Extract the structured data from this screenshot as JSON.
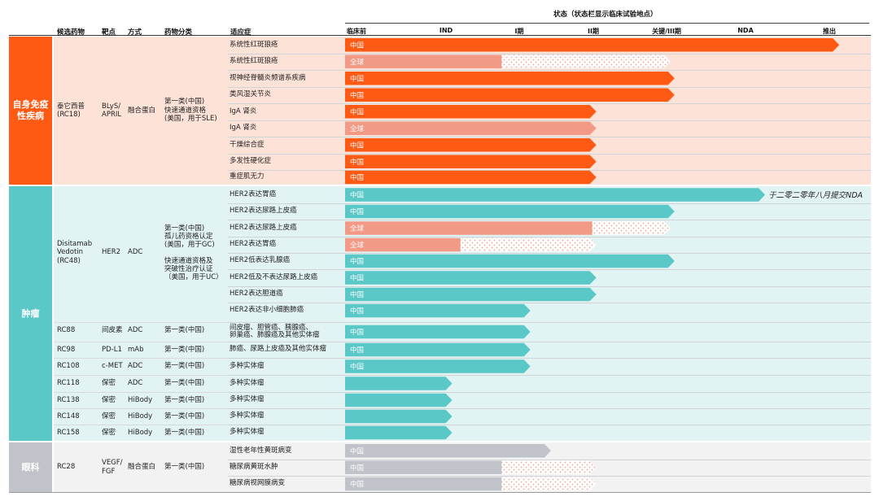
{
  "header": {
    "status_title": "状态（状态栏显示临床试验地点）",
    "col_candidate": "候选药物",
    "col_target": "靶点",
    "col_modality": "方式",
    "col_class": "药物分类",
    "col_indication": "适应症"
  },
  "colors": {
    "autoimmune_dark": "#ff5a14",
    "autoimmune_light": "#f29a86",
    "oncology_dark": "#5bc8c8",
    "oncology_light": "#f29a86",
    "ophthalmology_dark": "#c0c3c9",
    "text_on_bar": "#ffffff"
  },
  "categories": [
    {
      "name": "自身免疫\n性疾病",
      "key": "autoimmune"
    },
    {
      "name": "肿瘤",
      "key": "oncology"
    },
    {
      "name": "眼科",
      "key": "ophthalmology"
    }
  ],
  "drugs": [
    {
      "name": "泰它西普\n(RC18)",
      "target": "BLyS/\nAPRIL",
      "modality": "融合蛋白",
      "class": "第一类(中国)\n快速通道资格\n(美国，用于SLE)"
    },
    {
      "name": "Disitamab\nVedotin\n(RC48)",
      "target": "HER2",
      "modality": "ADC",
      "class": "第一类(中国)\n孤儿药资格认定\n(美国，用于GC)\n\n快速通道资格及\n突破性治疗认证\n（美国，用于UC）"
    },
    {
      "name": "RC88",
      "target": "间皮素",
      "modality": "ADC",
      "class": "第一类(中国)"
    },
    {
      "name": "RC98",
      "target": "PD-L1",
      "modality": "mAb",
      "class": "第一类(中国)"
    },
    {
      "name": "RC108",
      "target": "c-MET",
      "modality": "ADC",
      "class": "第一类(中国)"
    },
    {
      "name": "RC118",
      "target": "保密",
      "modality": "ADC",
      "class": "第一类(中国)"
    },
    {
      "name": "RC138",
      "target": "保密",
      "modality": "HiBody",
      "class": "第一类(中国)"
    },
    {
      "name": "RC148",
      "target": "保密",
      "modality": "HiBody",
      "class": "第一类(中国)"
    },
    {
      "name": "RC158",
      "target": "保密",
      "modality": "HiBody",
      "class": "第一类(中国)"
    },
    {
      "name": "RC28",
      "target": "VEGF/\nFGF",
      "modality": "融合蛋白",
      "class": "第一类(中国)"
    }
  ],
  "chart_data": {
    "type": "bar",
    "orientation": "horizontal",
    "title": "状态（状态栏显示临床试验地点）",
    "stages": [
      "临床前",
      "IND",
      "I期",
      "II期",
      "关键/III期",
      "NDA",
      "推出"
    ],
    "value_scale": "stage index: 0=临床前, 1=IND, 2=I期, 3=II期, 4=关键/III期, 5=NDA, 6=推出",
    "rows": [
      {
        "category": "autoimmune",
        "indication": "系统性红斑狼疮",
        "location": "中国",
        "value": 6.0
      },
      {
        "category": "autoimmune",
        "indication": "系统性红斑狼疮",
        "location": "全球",
        "value": 1.9,
        "planned_to": 3.95
      },
      {
        "category": "autoimmune",
        "indication": "视神经脊髓炎频谱系疾病",
        "location": "中国",
        "value": 4.0
      },
      {
        "category": "autoimmune",
        "indication": "类风湿关节炎",
        "location": "中国",
        "value": 4.0
      },
      {
        "category": "autoimmune",
        "indication": "IgA 肾炎",
        "location": "中国",
        "value": 3.05
      },
      {
        "category": "autoimmune",
        "indication": "IgA 肾炎",
        "location": "全球",
        "value": 3.05
      },
      {
        "category": "autoimmune",
        "indication": "干燥综合症",
        "location": "中国",
        "value": 3.05
      },
      {
        "category": "autoimmune",
        "indication": "多发性硬化症",
        "location": "中国",
        "value": 3.05
      },
      {
        "category": "autoimmune",
        "indication": "重症肌无力",
        "location": "中国",
        "value": 3.05
      },
      {
        "category": "oncology",
        "indication": "HER2表达胃癌",
        "location": "中国",
        "value": 5.1,
        "annotation": "于二零二零年八月提交NDA"
      },
      {
        "category": "oncology",
        "indication": "HER2表达尿路上皮癌",
        "location": "中国",
        "value": 4.0
      },
      {
        "category": "oncology",
        "indication": "HER2表达尿路上皮癌",
        "location": "全球",
        "value": 3.0,
        "planned_to": 3.95
      },
      {
        "category": "oncology",
        "indication": "HER2表达胃癌",
        "location": "全球",
        "value": 1.4,
        "planned_to": 3.05
      },
      {
        "category": "oncology",
        "indication": "HER2低表达乳腺癌",
        "location": "中国",
        "value": 4.0
      },
      {
        "category": "oncology",
        "indication": "HER2低及不表达尿路上皮癌",
        "location": "中国",
        "value": 3.05
      },
      {
        "category": "oncology",
        "indication": "HER2表达胆道癌",
        "location": "中国",
        "value": 3.05
      },
      {
        "category": "oncology",
        "indication": "HER2表达非小细胞肺癌",
        "location": "中国",
        "value": 2.25
      },
      {
        "category": "oncology",
        "indication": "间皮瘤、胆管癌、胰腺癌、\n卵巢癌、肺腺癌及其他实体瘤",
        "location": "中国",
        "value": 2.25
      },
      {
        "category": "oncology",
        "indication": "肺癌、尿路上皮癌及其他实体瘤",
        "location": "中国",
        "value": 2.25
      },
      {
        "category": "oncology",
        "indication": "多种实体瘤",
        "location": "中国",
        "value": 2.25
      },
      {
        "category": "oncology",
        "indication": "多种实体瘤",
        "location": "",
        "value": 1.3
      },
      {
        "category": "oncology",
        "indication": "多种实体瘤",
        "location": "",
        "value": 1.3
      },
      {
        "category": "oncology",
        "indication": "多种实体瘤",
        "location": "",
        "value": 1.3
      },
      {
        "category": "oncology",
        "indication": "多种实体瘤",
        "location": "",
        "value": 1.3
      },
      {
        "category": "ophthalmology",
        "indication": "湿性老年性黄斑病变",
        "location": "中国",
        "value": 2.5
      },
      {
        "category": "ophthalmology",
        "indication": "糖尿病黄斑水肿",
        "location": "中国",
        "value": 1.9,
        "planned_to": 3.05
      },
      {
        "category": "ophthalmology",
        "indication": "糖尿病视网膜病变",
        "location": "中国",
        "value": 1.9,
        "planned_to": 3.05
      }
    ]
  }
}
